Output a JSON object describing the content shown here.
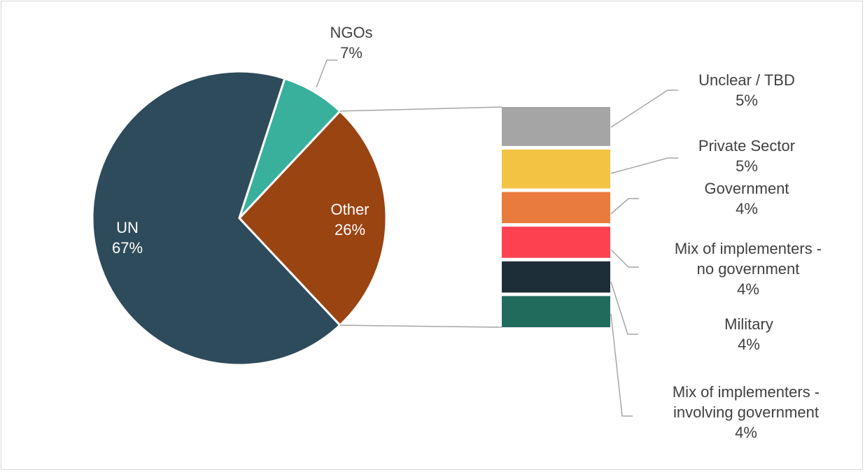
{
  "chart_data": {
    "type": "pie",
    "title": "",
    "main_slices": [
      {
        "key": "un",
        "label": "UN",
        "value": 67,
        "value_label": "67%",
        "color": "#2e4b5b",
        "label_color": "#ffffff"
      },
      {
        "key": "ngos",
        "label": "NGOs",
        "value": 7,
        "value_label": "7%",
        "color": "#38b09c",
        "label_color": "#404040"
      },
      {
        "key": "other",
        "label": "Other",
        "value": 26,
        "value_label": "26%",
        "color": "#9a4412",
        "label_color": "#ffffff"
      }
    ],
    "other_breakdown": [
      {
        "key": "unclear",
        "label": "Unclear / TBD",
        "value": 5,
        "value_label": "5%",
        "color": "#a5a5a5"
      },
      {
        "key": "private",
        "label": "Private Sector",
        "value": 5,
        "value_label": "5%",
        "color": "#f3c444"
      },
      {
        "key": "government",
        "label": "Government",
        "value": 4,
        "value_label": "4%",
        "color": "#e97b3c"
      },
      {
        "key": "mix_no_gov",
        "label": "Mix of implementers - no government",
        "label_lines": [
          "Mix of implementers -",
          "no government"
        ],
        "value": 4,
        "value_label": "4%",
        "color": "#fd4150"
      },
      {
        "key": "military",
        "label": "Military",
        "value": 4,
        "value_label": "4%",
        "color": "#1e2e38"
      },
      {
        "key": "mix_gov",
        "label": "Mix of implementers - involving government",
        "label_lines": [
          "Mix of implementers -",
          "involving government"
        ],
        "value": 4,
        "value_label": "4%",
        "color": "#216b5d"
      }
    ],
    "legend": "none"
  }
}
